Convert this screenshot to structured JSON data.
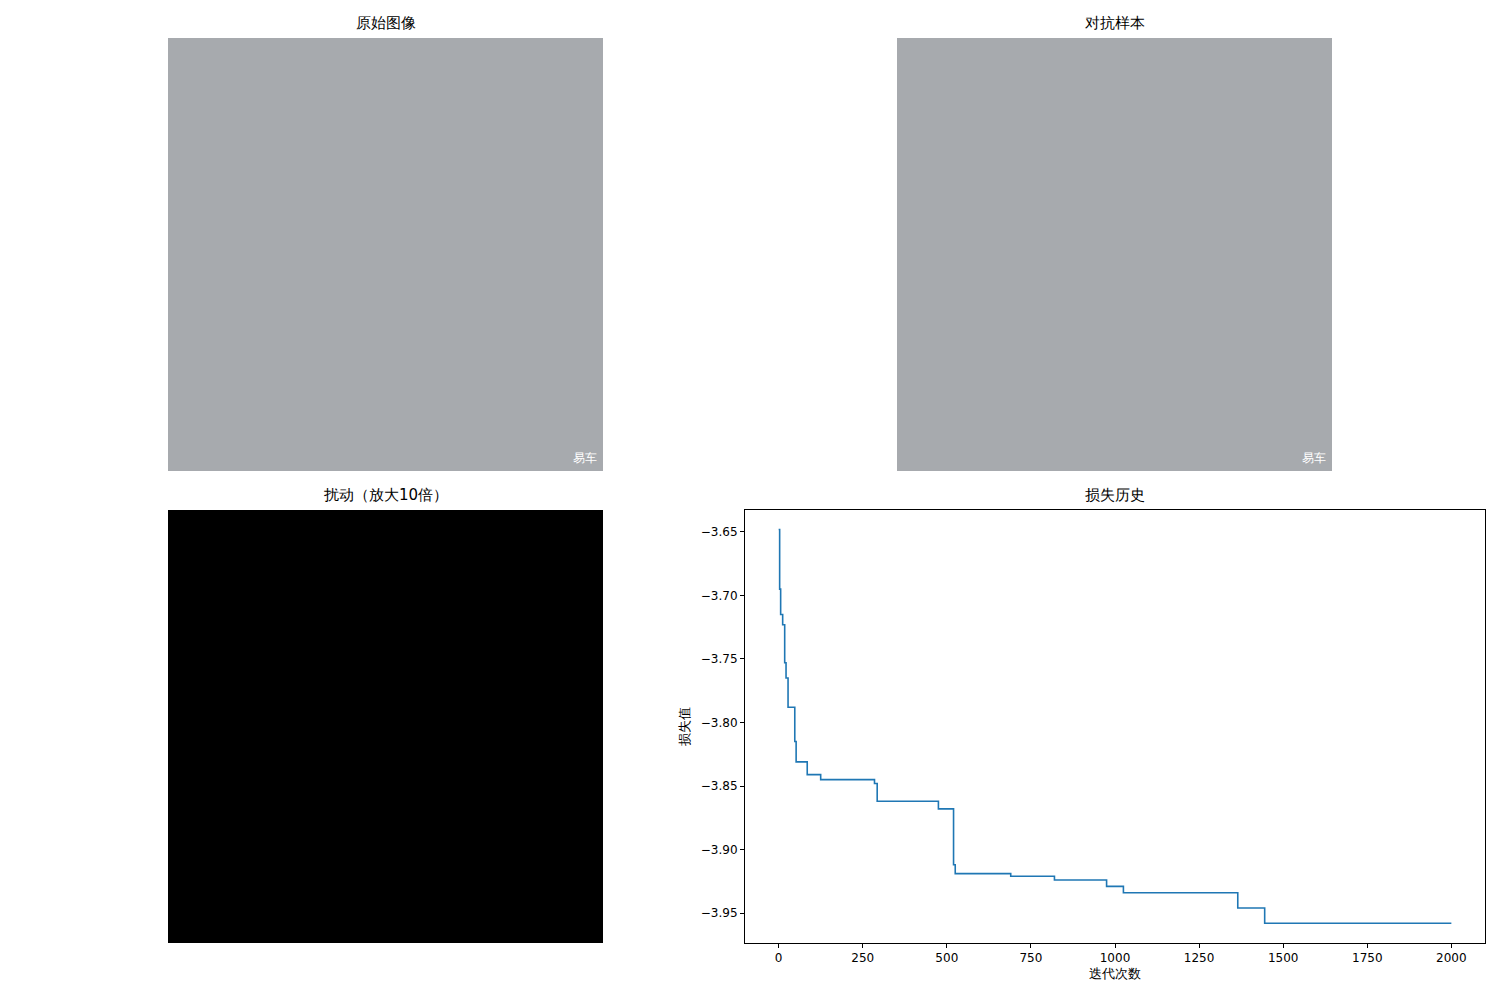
{
  "chart_data": [
    {
      "type": "image",
      "title": "原始图像",
      "color": "#a7aaae",
      "tick_labels": false,
      "annotations": [
        "易车"
      ]
    },
    {
      "type": "image",
      "title": "对抗样本",
      "color": "#a7aaae",
      "tick_labels": false,
      "annotations": [
        "易车"
      ]
    },
    {
      "type": "image",
      "title": "扰动（放大10倍）",
      "color": "#000000",
      "tick_labels": false
    },
    {
      "type": "line",
      "title": "损失历史",
      "x_label": "迭代次数",
      "y_label": "损失值",
      "x": [
        0,
        3,
        3,
        6,
        6,
        12,
        12,
        18,
        18,
        22,
        22,
        28,
        28,
        48,
        48,
        52,
        52,
        85,
        85,
        125,
        125,
        285,
        285,
        293,
        293,
        475,
        475,
        520,
        520,
        525,
        525,
        690,
        690,
        820,
        820,
        975,
        975,
        1025,
        1025,
        1365,
        1365,
        1445,
        1445,
        2000
      ],
      "series": [
        {
          "name": "损失",
          "color": "#1f77b4",
          "line_style": "solid",
          "values": [
            -3.648,
            -3.648,
            -3.695,
            -3.695,
            -3.715,
            -3.715,
            -3.723,
            -3.723,
            -3.753,
            -3.753,
            -3.765,
            -3.765,
            -3.788,
            -3.788,
            -3.815,
            -3.815,
            -3.831,
            -3.831,
            -3.841,
            -3.841,
            -3.845,
            -3.845,
            -3.848,
            -3.848,
            -3.862,
            -3.862,
            -3.868,
            -3.868,
            -3.912,
            -3.912,
            -3.919,
            -3.919,
            -3.921,
            -3.921,
            -3.924,
            -3.924,
            -3.929,
            -3.929,
            -3.934,
            -3.934,
            -3.946,
            -3.946,
            -3.958,
            -3.958
          ]
        }
      ],
      "xlim": [
        -100,
        2100
      ],
      "xticks": [
        0,
        250,
        500,
        750,
        1000,
        1250,
        1500,
        1750,
        2000
      ],
      "ylim": [
        -3.9736,
        -3.6327
      ],
      "yticks": [
        {
          "value": -3.95,
          "label": "−3.95"
        },
        {
          "value": -3.9,
          "label": "−3.90"
        },
        {
          "value": -3.85,
          "label": "−3.85"
        },
        {
          "value": -3.8,
          "label": "−3.80"
        },
        {
          "value": -3.75,
          "label": "−3.75"
        },
        {
          "value": -3.7,
          "label": "−3.70"
        },
        {
          "value": -3.65,
          "label": "−3.65"
        }
      ],
      "grid": false
    }
  ]
}
